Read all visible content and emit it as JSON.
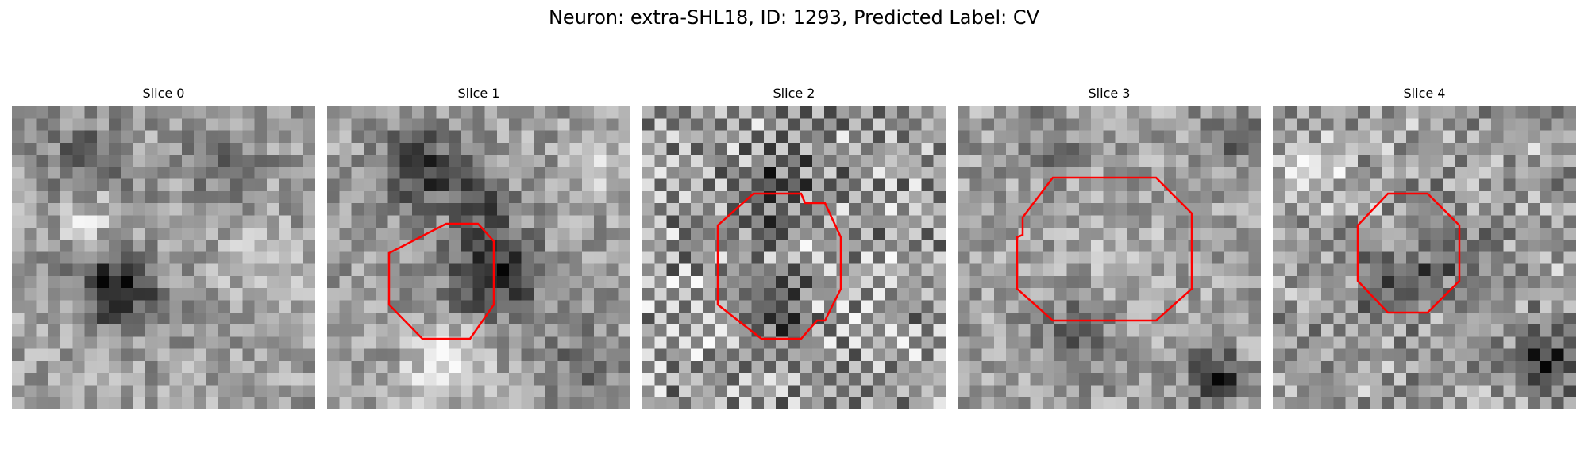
{
  "figure": {
    "title": "Neuron: extra-SHL18, ID: 1293, Predicted Label: CV"
  },
  "panels": [
    {
      "title": "Slice 0",
      "has_contour": false,
      "seed": 11
    },
    {
      "title": "Slice 1",
      "has_contour": true,
      "seed": 23
    },
    {
      "title": "Slice 2",
      "has_contour": true,
      "seed": 37
    },
    {
      "title": "Slice 3",
      "has_contour": true,
      "seed": 41
    },
    {
      "title": "Slice 4",
      "has_contour": true,
      "seed": 53
    }
  ],
  "colors": {
    "contour": "#ff0000",
    "background": "#ffffff"
  }
}
